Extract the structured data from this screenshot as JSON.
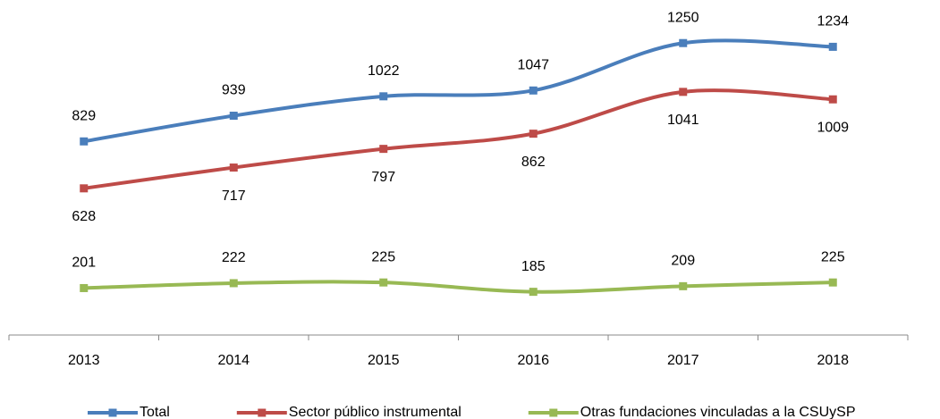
{
  "chart_data": {
    "type": "line",
    "categories": [
      "2013",
      "2014",
      "2015",
      "2016",
      "2017",
      "2018"
    ],
    "series": [
      {
        "name": "Total",
        "color": "#4a7ebb",
        "values": [
          829,
          939,
          1022,
          1047,
          1250,
          1234
        ]
      },
      {
        "name": "Sector público instrumental",
        "color": "#be4b48",
        "values": [
          628,
          717,
          797,
          862,
          1041,
          1009
        ]
      },
      {
        "name": "Otras fundaciones vinculadas a la CSUySP",
        "color": "#98b954",
        "values": [
          201,
          222,
          225,
          185,
          209,
          225
        ]
      }
    ],
    "ylim": [
      0,
      1400
    ],
    "smooth": true,
    "legend": "bottom"
  }
}
